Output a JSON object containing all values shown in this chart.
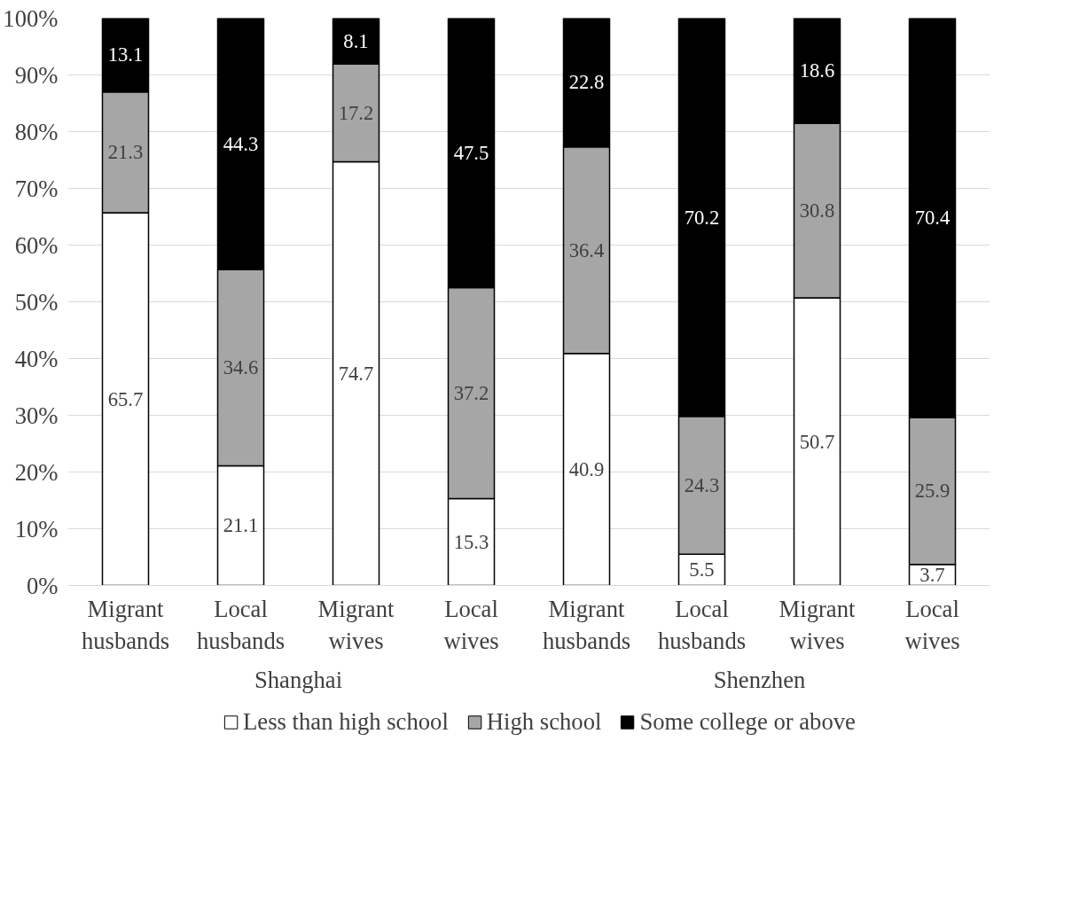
{
  "chart_data": {
    "type": "bar",
    "stacked": true,
    "categories": [
      "Migrant husbands",
      "Local husbands",
      "Migrant wives",
      "Local wives",
      "Migrant husbands",
      "Local husbands",
      "Migrant wives",
      "Local wives"
    ],
    "series": [
      {
        "name": "Less than high school",
        "color": "#ffffff",
        "values": [
          65.7,
          21.1,
          74.7,
          15.3,
          40.9,
          5.5,
          50.7,
          3.7
        ]
      },
      {
        "name": "High school",
        "color": "#a6a6a6",
        "values": [
          21.3,
          34.6,
          17.2,
          37.2,
          36.4,
          24.3,
          30.8,
          25.9
        ]
      },
      {
        "name": "Some college or above",
        "color": "#000000",
        "values": [
          13.1,
          44.3,
          8.1,
          47.5,
          22.8,
          70.2,
          18.6,
          70.4
        ]
      }
    ],
    "ylim": [
      0,
      100
    ],
    "yticks": [
      {
        "value": 0,
        "label": "0%"
      },
      {
        "value": 10,
        "label": "10%"
      },
      {
        "value": 20,
        "label": "20%"
      },
      {
        "value": 30,
        "label": "30%"
      },
      {
        "value": 40,
        "label": "40%"
      },
      {
        "value": 50,
        "label": "50%"
      },
      {
        "value": 60,
        "label": "60%"
      },
      {
        "value": 70,
        "label": "70%"
      },
      {
        "value": 80,
        "label": "80%"
      },
      {
        "value": 90,
        "label": "90%"
      },
      {
        "value": 100,
        "label": "100%"
      }
    ],
    "annotations": [
      "Shanghai",
      "Shenzhen"
    ],
    "data_labels": true,
    "grid": "y",
    "legend": "bottom"
  }
}
